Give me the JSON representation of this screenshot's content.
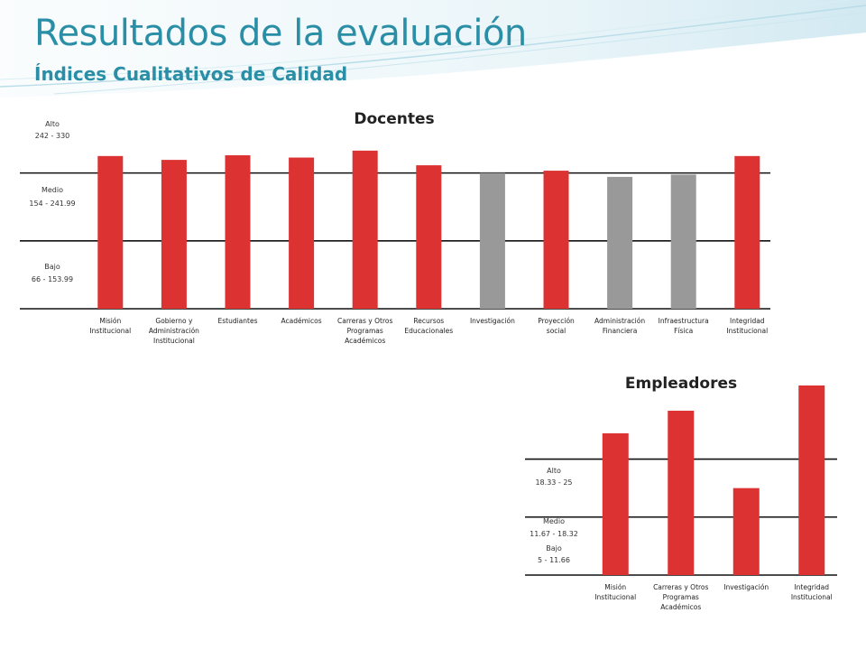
{
  "slide": {
    "title": "Resultados de la evaluación",
    "subtitle": "Índices Cualitativos de Calidad",
    "accent_color": "#2a8fa6"
  },
  "chart_data": [
    {
      "type": "bar",
      "title": "Docentes",
      "categories": [
        [
          "Misión",
          "Institucional"
        ],
        [
          "Gobierno y",
          "Administración",
          "Institucional"
        ],
        [
          "Estudiantes"
        ],
        [
          "Académicos"
        ],
        [
          "Carreras y Otros",
          "Programas",
          "Académicos"
        ],
        [
          "Recursos",
          "Educacionales"
        ],
        [
          "Investigación"
        ],
        [
          "Proyección",
          "social"
        ],
        [
          "Administración",
          "Financiera"
        ],
        [
          "Infraestructura",
          "Física"
        ],
        [
          "Integridad",
          "Institucional"
        ]
      ],
      "values": [
        264,
        259,
        265,
        262,
        271,
        252,
        242,
        245,
        237,
        240,
        264
      ],
      "colors": [
        "#dc3232",
        "#dc3232",
        "#dc3232",
        "#dc3232",
        "#dc3232",
        "#dc3232",
        "#999999",
        "#dc3232",
        "#999999",
        "#999999",
        "#dc3232"
      ],
      "ylim": [
        66,
        272
      ],
      "bands": [
        {
          "name": "Alto",
          "range": "242 - 330",
          "lower": 242
        },
        {
          "name": "Medio",
          "range": "154 - 241.99",
          "lower": 154
        },
        {
          "name": "Bajo",
          "range": "66 - 153.99",
          "lower": 66
        }
      ]
    },
    {
      "type": "bar",
      "title": "Empleadores",
      "categories": [
        [
          "Misión",
          "Institucional"
        ],
        [
          "Carreras y Otros",
          "Programas",
          "Académicos"
        ],
        [
          "Investigación"
        ],
        [
          "Integridad",
          "Institucional"
        ]
      ],
      "values": [
        21.3,
        23.9,
        15.0,
        26.8
      ],
      "colors": [
        "#dc3232",
        "#dc3232",
        "#dc3232",
        "#dc3232"
      ],
      "ylim": [
        5,
        26.8
      ],
      "bands": [
        {
          "name": "Alto",
          "range": "18.33 - 25",
          "lower": 18.33
        },
        {
          "name": "Medio",
          "range": "11.67 - 18.32",
          "lower": 11.67
        },
        {
          "name": "Bajo",
          "range": "5 - 11.66",
          "lower": 5
        }
      ]
    }
  ]
}
